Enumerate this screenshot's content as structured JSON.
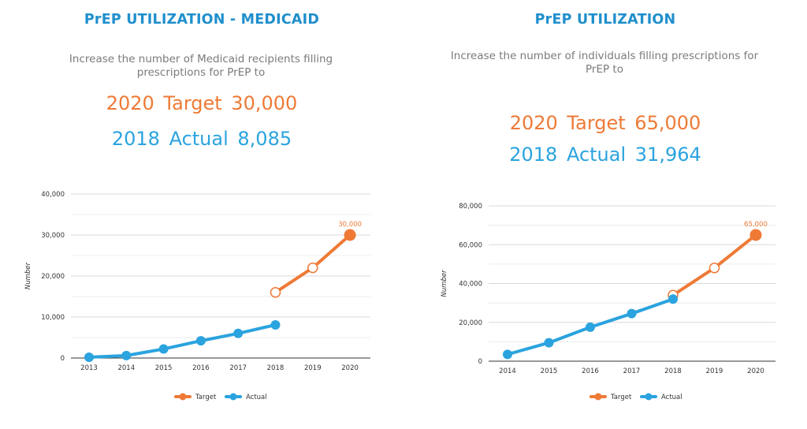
{
  "panels": [
    {
      "title": "PrEP UTILIZATION - MEDICAID",
      "description_lines": [
        "Increase the number of Medicaid recipients filling",
        "prescriptions for PrEP to"
      ],
      "target_text": "2020 Target 30,000",
      "actual_text": "2018 Actual 8,085"
    },
    {
      "title": "PrEP UTILIZATION",
      "description_lines": [
        "Increase the number of individuals filling prescriptions for",
        "PrEP to"
      ],
      "target_text": "2020 Target 65,000",
      "actual_text": "2018 Actual 31,964"
    }
  ],
  "colors": {
    "target": "#ee7a36",
    "actual": "#2aa3df",
    "title": "#1f8fcc",
    "grid": "#d9d9d9"
  },
  "chart_data": [
    {
      "type": "line",
      "categories": [
        "2013",
        "2014",
        "2015",
        "2016",
        "2017",
        "2018",
        "2019",
        "2020"
      ],
      "ylabel": "Number",
      "ylim": [
        0,
        40000
      ],
      "yticks": [
        0,
        10000,
        20000,
        30000,
        40000
      ],
      "ytick_labels": [
        "0",
        "10,000",
        "20,000",
        "30,000",
        "40,000"
      ],
      "grid": true,
      "legend_position": "bottom",
      "series": [
        {
          "name": "Target",
          "values": [
            null,
            null,
            null,
            null,
            null,
            16000,
            22000,
            30000
          ]
        },
        {
          "name": "Actual",
          "values": [
            200,
            600,
            2200,
            4200,
            6000,
            8085,
            null,
            null
          ]
        }
      ],
      "annotations": [
        {
          "series": "Target",
          "x": "2020",
          "text": "30,000"
        }
      ]
    },
    {
      "type": "line",
      "categories": [
        "2014",
        "2015",
        "2016",
        "2017",
        "2018",
        "2019",
        "2020"
      ],
      "ylabel": "Number",
      "ylim": [
        0,
        80000
      ],
      "yticks": [
        0,
        20000,
        40000,
        60000,
        80000
      ],
      "ytick_labels": [
        "0",
        "20,000",
        "40,000",
        "60,000",
        "80,000"
      ],
      "grid": true,
      "legend_position": "bottom",
      "series": [
        {
          "name": "Target",
          "values": [
            null,
            null,
            null,
            null,
            34000,
            48000,
            65000
          ]
        },
        {
          "name": "Actual",
          "values": [
            3500,
            9500,
            17500,
            24500,
            31964,
            null,
            null
          ]
        }
      ],
      "annotations": [
        {
          "series": "Target",
          "x": "2020",
          "text": "65,000"
        }
      ]
    }
  ]
}
